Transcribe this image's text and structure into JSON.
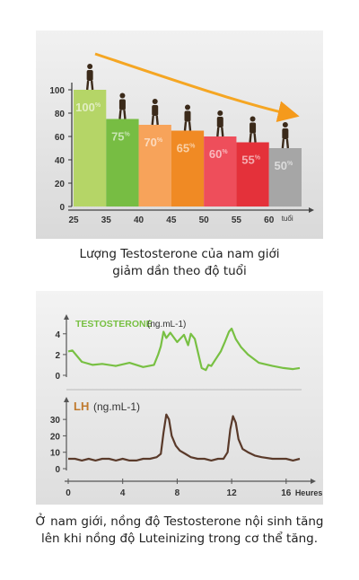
{
  "chart_data": [
    {
      "type": "bar",
      "categories": [
        "25-35",
        "35-40",
        "40-45",
        "45-50",
        "50-55",
        "55-60",
        "60+"
      ],
      "values": [
        100,
        75,
        70,
        65,
        60,
        55,
        50
      ],
      "labels": [
        "100%",
        "75%",
        "70%",
        "65%",
        "60%",
        "55%",
        "50%"
      ],
      "colors": [
        "#b5d567",
        "#77bd43",
        "#f7a35a",
        "#f08a24",
        "#ee4e5b",
        "#e4313a",
        "#a6a6a6"
      ],
      "xticks": [
        "25",
        "35",
        "40",
        "45",
        "50",
        "55",
        "60"
      ],
      "xunit": "tuổi",
      "yticks": [
        "0",
        "20",
        "40",
        "60",
        "80",
        "100"
      ],
      "ylim": [
        0,
        100
      ],
      "trend_arrow": true
    },
    {
      "type": "line",
      "title": "TESTOSTERONE",
      "unit": "(ng.mL-1)",
      "yticks": [
        "0",
        "2",
        "4"
      ],
      "ylim": [
        0,
        4.5
      ],
      "color": "#78c043",
      "x": [
        0,
        0.3,
        1,
        1.8,
        2.5,
        3.5,
        4.5,
        5.5,
        6.3,
        6.6,
        6.8,
        7,
        7.2,
        7.5,
        8,
        8.5,
        8.8,
        9,
        9.3,
        9.6,
        9.8,
        10.1,
        10.3,
        10.5,
        10.8,
        11.2,
        11.5,
        11.8,
        12,
        12.3,
        12.7,
        13.2,
        14,
        15,
        15.8,
        16.5,
        17
      ],
      "y": [
        2.3,
        2.4,
        1.3,
        1.0,
        1.1,
        0.9,
        1.2,
        0.8,
        1.0,
        2.0,
        2.8,
        4.2,
        3.6,
        4.1,
        3.2,
        3.9,
        2.9,
        4.0,
        3.5,
        1.8,
        0.7,
        0.5,
        1.0,
        0.9,
        1.5,
        2.3,
        3.2,
        4.2,
        4.5,
        3.5,
        2.7,
        2.0,
        1.2,
        0.9,
        0.7,
        0.6,
        0.7
      ]
    },
    {
      "type": "line",
      "title": "LH",
      "unit": "(ng.mL-1)",
      "yticks": [
        "0",
        "10",
        "20",
        "30"
      ],
      "ylim": [
        0,
        35
      ],
      "color": "#5a3a2a",
      "x": [
        0,
        0.5,
        1,
        1.5,
        2,
        2.5,
        3,
        3.5,
        4,
        4.5,
        5,
        5.5,
        6,
        6.5,
        6.8,
        7,
        7.2,
        7.4,
        7.6,
        7.9,
        8.2,
        8.6,
        9,
        9.5,
        10,
        10.5,
        11,
        11.4,
        11.7,
        11.9,
        12.1,
        12.3,
        12.5,
        12.8,
        13.2,
        13.7,
        14.2,
        15,
        15.5,
        16,
        16.5,
        17
      ],
      "y": [
        6,
        6,
        5,
        6,
        5,
        6,
        6,
        5,
        6,
        5,
        5,
        6,
        6,
        7,
        9,
        22,
        33,
        30,
        20,
        14,
        11,
        9,
        7,
        6,
        6,
        5,
        6,
        6,
        10,
        24,
        32,
        28,
        18,
        12,
        10,
        8,
        7,
        6,
        6,
        6,
        5,
        6
      ]
    },
    {
      "type": "axis",
      "xticks": [
        "0",
        "4",
        "8",
        "12",
        "16"
      ],
      "xlim": [
        0,
        17
      ],
      "xunit": "Heures"
    }
  ],
  "captions": {
    "cap1": [
      "Lượng Testosterone của nam giới",
      "giảm dần theo độ tuổi"
    ],
    "cap2": [
      "Ở nam giới, nồng độ Testosterone nội sinh tăng",
      "lên khi nồng độ Luteinizing trong cơ thể tăng."
    ]
  }
}
